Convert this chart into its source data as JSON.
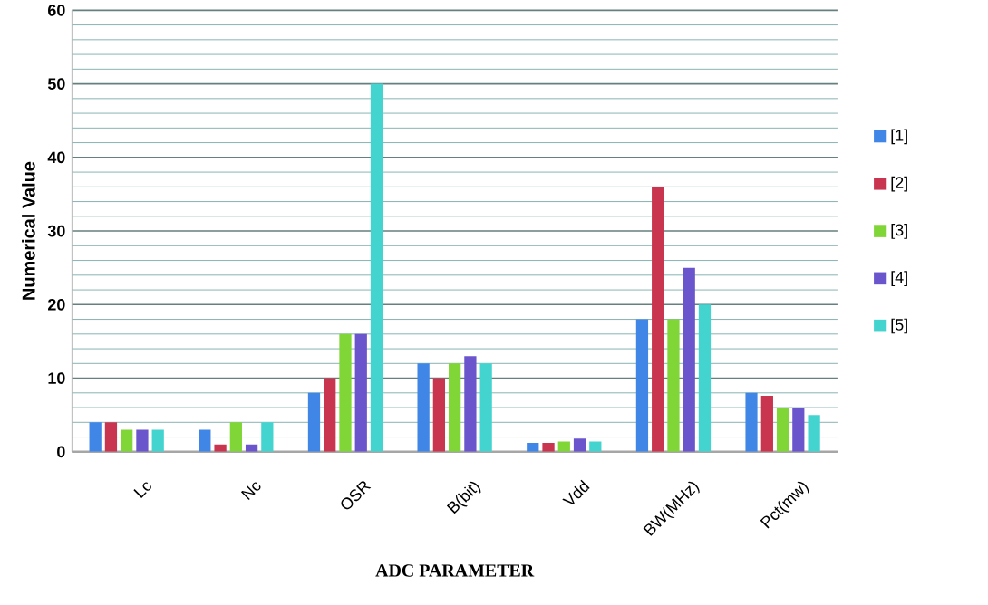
{
  "chart_data": {
    "type": "bar",
    "xlabel": "ADC  PARAMETER",
    "ylabel": "Numerical Value",
    "categories": [
      "Lc",
      "Nc",
      "OSR",
      "B(bit)",
      "Vdd",
      "BW(MHz)",
      "Pct(mw)"
    ],
    "series": [
      {
        "name": "[1]",
        "color": "#3f86e6",
        "values": [
          4,
          3,
          8,
          12,
          1.2,
          18,
          8
        ]
      },
      {
        "name": "[2]",
        "color": "#c9344f",
        "values": [
          4,
          1,
          10,
          10,
          1.2,
          36,
          7.6
        ]
      },
      {
        "name": "[3]",
        "color": "#80d636",
        "values": [
          3,
          4,
          16,
          12,
          1.4,
          18,
          6
        ]
      },
      {
        "name": "[4]",
        "color": "#6a55cc",
        "values": [
          3,
          1,
          16,
          13,
          1.8,
          25,
          6
        ]
      },
      {
        "name": "[5]",
        "color": "#44d4d0",
        "values": [
          3,
          4,
          50,
          12,
          1.4,
          20,
          5
        ]
      }
    ],
    "ylim": [
      0,
      60
    ],
    "yticks": [
      0,
      {
        "value": 2,
        "label": null
      },
      {
        "value": 4,
        "label": null
      },
      {
        "value": 6,
        "label": null
      },
      {
        "value": 8,
        "label": null
      },
      10,
      {
        "value": 12,
        "label": null
      },
      {
        "value": 14,
        "label": null
      },
      {
        "value": 16,
        "label": null
      },
      {
        "value": 18,
        "label": null
      },
      20,
      {
        "value": 22,
        "label": null
      },
      {
        "value": 24,
        "label": null
      },
      {
        "value": 26,
        "label": null
      },
      {
        "value": 28,
        "label": null
      },
      30,
      {
        "value": 32,
        "label": null
      },
      {
        "value": 34,
        "label": null
      },
      {
        "value": 36,
        "label": null
      },
      {
        "value": 38,
        "label": null
      },
      40,
      {
        "value": 42,
        "label": null
      },
      {
        "value": 44,
        "label": null
      },
      {
        "value": 46,
        "label": null
      },
      {
        "value": 48,
        "label": null
      },
      50,
      {
        "value": 52,
        "label": null
      },
      {
        "value": 54,
        "label": null
      },
      {
        "value": 56,
        "label": null
      },
      {
        "value": 58,
        "label": null
      },
      60
    ],
    "grid": "y",
    "legend": "right"
  }
}
